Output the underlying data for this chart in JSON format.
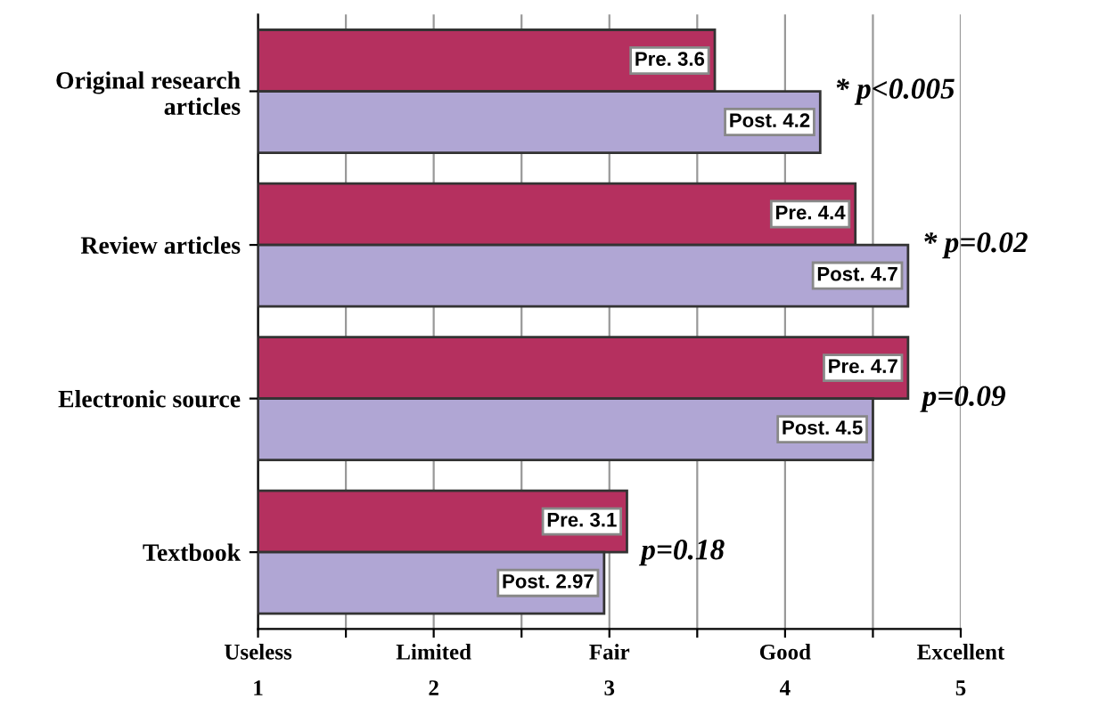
{
  "chart_data": {
    "type": "bar",
    "orientation": "horizontal",
    "categories": [
      "Original research\narticles",
      "Review articles",
      "Electronic source",
      "Textbook"
    ],
    "series": [
      {
        "name": null,
        "color": "#b5305f",
        "values": [
          3.6,
          4.4,
          4.7,
          3.1
        ],
        "value_labels": [
          "Pre. 3.6",
          "Pre. 4.4",
          "Pre. 4.7",
          "Pre. 3.1"
        ]
      },
      {
        "name": null,
        "color": "#b0a6d4",
        "values": [
          4.2,
          4.7,
          4.5,
          2.97
        ],
        "value_labels": [
          "Post. 4.2",
          "Post. 4.7",
          "Post. 4.5",
          "Post. 2.97"
        ]
      }
    ],
    "xlim": [
      1,
      5
    ],
    "xticks": [
      1,
      {
        "value": 1.5,
        "label": null
      },
      2,
      {
        "value": 2.5,
        "label": null
      },
      3,
      {
        "value": 3.5,
        "label": null
      },
      4,
      {
        "value": 4.5,
        "label": null
      },
      5
    ],
    "grid": "x",
    "annotations": [
      "* p<0.005",
      "* p=0.02",
      "p=0.09",
      "p=0.18",
      "Useless",
      "Limited",
      "Fair",
      "Good",
      "Excellent"
    ]
  }
}
